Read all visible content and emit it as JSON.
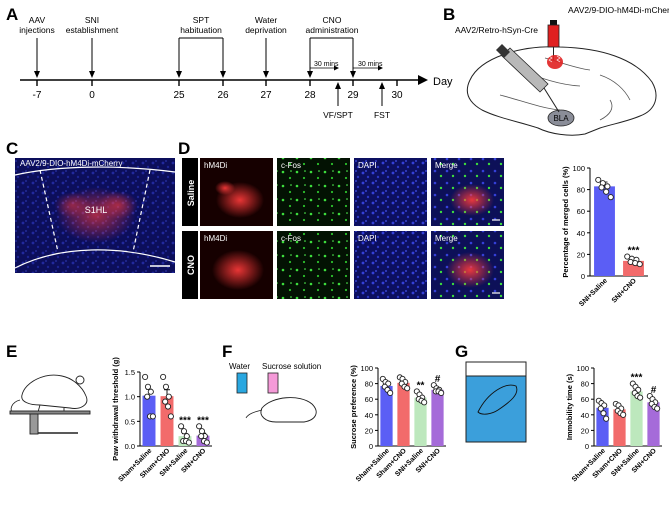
{
  "panel_labels": {
    "a": "A",
    "b": "B",
    "c": "C",
    "d": "D",
    "e": "E",
    "f": "F",
    "g": "G"
  },
  "timeline": {
    "days": [
      "-7",
      "0",
      "25",
      "26",
      "27",
      "28",
      "29",
      "30"
    ],
    "day_label": "Day",
    "events_above": [
      {
        "id": "aav",
        "lines": [
          "AAV",
          "injections"
        ]
      },
      {
        "id": "sni",
        "lines": [
          "SNI",
          "establishment"
        ]
      },
      {
        "id": "spt",
        "lines": [
          "SPT",
          "habituation"
        ]
      },
      {
        "id": "water",
        "lines": [
          "Water",
          "deprivation"
        ]
      },
      {
        "id": "cno",
        "lines": [
          "CNO",
          "administration"
        ]
      }
    ],
    "interval_label": "30 mins",
    "events_below": [
      {
        "id": "vfspt",
        "text": "VF/SPT"
      },
      {
        "id": "fst",
        "text": "FST"
      }
    ]
  },
  "panel_b": {
    "label_red_vector": "AAV2/9-DIO-hM4Di-mCherry",
    "label_retro_vector": "AAV2/Retro-hSyn-Cre",
    "region": "BLA"
  },
  "panel_c": {
    "title": "AAV2/9-DIO-hM4Di-mCherry",
    "region": "S1HL"
  },
  "panel_d": {
    "rows": [
      "Saline",
      "CNO"
    ],
    "columns": [
      "hM4Di",
      "c-Fos",
      "DAPI",
      "Merge"
    ]
  },
  "chart_data": [
    {
      "id": "merged",
      "type": "bar",
      "ylabel": "Percentage of merged cells (%)",
      "ylim": [
        0,
        100
      ],
      "yticks": [
        0,
        20,
        40,
        60,
        80,
        100
      ],
      "categories": [
        "SNI+Saline",
        "SNI+CNO"
      ],
      "values": [
        83,
        14
      ],
      "errors": [
        4,
        2
      ],
      "colors": [
        "#5b5ef5",
        "#f26b6b"
      ],
      "points": [
        [
          89,
          86,
          83,
          82,
          78,
          73
        ],
        [
          18,
          16,
          15,
          13,
          12,
          11
        ]
      ],
      "annotations": [
        "",
        "***"
      ]
    },
    {
      "id": "paw",
      "type": "bar",
      "ylabel": "Paw withdrawal threshold (g)",
      "ylim": [
        0,
        1.5
      ],
      "yticks": [
        0.0,
        0.5,
        1.0,
        1.5
      ],
      "categories": [
        "Sham+Saline",
        "Sham+CNO",
        "SNI+Saline",
        "SNI+CNO"
      ],
      "values": [
        1.02,
        1.01,
        0.2,
        0.21
      ],
      "errors": [
        0.13,
        0.13,
        0.05,
        0.05
      ],
      "colors": [
        "#5b5ef5",
        "#f26b6b",
        "#bde8bd",
        "#a56bd9"
      ],
      "points": [
        [
          1.4,
          1.2,
          1.1,
          1.0,
          0.6,
          0.6
        ],
        [
          1.4,
          1.2,
          1.0,
          0.9,
          0.8,
          0.6
        ],
        [
          0.4,
          0.3,
          0.2,
          0.1,
          0.1,
          0.07
        ],
        [
          0.4,
          0.3,
          0.2,
          0.2,
          0.1,
          0.07
        ]
      ],
      "annotations": [
        "",
        "",
        "***",
        "***"
      ]
    },
    {
      "id": "sucrose",
      "type": "bar",
      "ylabel": "Sucrose preference (%)",
      "ylim": [
        0,
        100
      ],
      "yticks": [
        0,
        20,
        40,
        60,
        80,
        100
      ],
      "categories": [
        "Sham+Saline",
        "Sham+CNO",
        "SNI+Saline",
        "SNI+CNO"
      ],
      "values": [
        77,
        81,
        62,
        72
      ],
      "errors": [
        4,
        3,
        3,
        2
      ],
      "colors": [
        "#5b5ef5",
        "#f26b6b",
        "#bde8bd",
        "#a56bd9"
      ],
      "points": [
        [
          86,
          82,
          80,
          76,
          72,
          68
        ],
        [
          88,
          86,
          82,
          80,
          76,
          74
        ],
        [
          70,
          66,
          62,
          60,
          58,
          56
        ],
        [
          78,
          74,
          72,
          70,
          70,
          68
        ]
      ],
      "annotations": [
        "",
        "",
        "**",
        "#"
      ]
    },
    {
      "id": "immobility",
      "type": "bar",
      "ylabel": "Immobility time (s)",
      "ylim": [
        0,
        100
      ],
      "yticks": [
        0,
        20,
        40,
        60,
        80,
        100
      ],
      "categories": [
        "Sham+Saline",
        "Sham+CNO",
        "SNI+Saline",
        "SNI+CNO"
      ],
      "values": [
        49,
        47,
        70,
        56
      ],
      "errors": [
        5,
        3,
        3,
        3
      ],
      "colors": [
        "#5b5ef5",
        "#f26b6b",
        "#bde8bd",
        "#a56bd9"
      ],
      "points": [
        [
          58,
          55,
          52,
          48,
          42,
          35
        ],
        [
          54,
          52,
          48,
          45,
          42,
          40
        ],
        [
          80,
          76,
          72,
          68,
          64,
          62
        ],
        [
          64,
          60,
          56,
          54,
          50,
          48
        ]
      ],
      "annotations": [
        "",
        "",
        "***",
        "#"
      ]
    }
  ],
  "panel_f_legend": {
    "water": "Water",
    "sucrose": "Sucrose solution"
  }
}
